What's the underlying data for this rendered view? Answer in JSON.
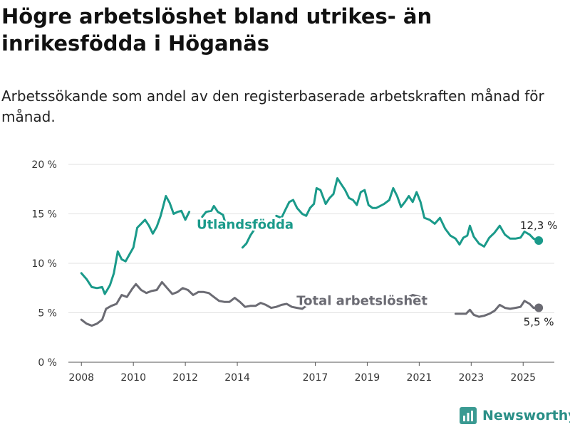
{
  "header": {
    "title": "Högre arbetslöshet bland utrikes- än inrikesfödda i Höganäs",
    "subtitle": "Arbetssökande som andel av den registerbaserade arbetskraften månad för månad."
  },
  "brand": {
    "name": "Newsworthy",
    "icon": "newsworthy-logo-icon",
    "color": "#3a9a92"
  },
  "chart_data": {
    "type": "line",
    "title": "",
    "xlabel": "",
    "ylabel": "",
    "ylim": [
      0,
      20
    ],
    "xlim": [
      2007.5,
      2026.2
    ],
    "yticks": [
      0,
      5,
      10,
      15,
      20
    ],
    "yticklabels": [
      "0 %",
      "5 %",
      "10 %",
      "15 %",
      "20 %"
    ],
    "xticks": [
      2008,
      2010,
      2012,
      2014,
      2017,
      2019,
      2021,
      2023,
      2025
    ],
    "xticklabels": [
      "2008",
      "2010",
      "2012",
      "2014",
      "2017",
      "2019",
      "2021",
      "2023",
      "2025"
    ],
    "grid": "horizontal",
    "legend": "inline labels",
    "series": [
      {
        "name": "Utlandsfödda",
        "color": "#1a9a8a",
        "end_label": "12,3 %",
        "points": [
          [
            2008.0,
            9.0
          ],
          [
            2008.2,
            8.4
          ],
          [
            2008.4,
            7.6
          ],
          [
            2008.6,
            7.5
          ],
          [
            2008.8,
            7.6
          ],
          [
            2008.9,
            6.9
          ],
          [
            2009.1,
            7.8
          ],
          [
            2009.25,
            9.0
          ],
          [
            2009.4,
            11.2
          ],
          [
            2009.55,
            10.4
          ],
          [
            2009.7,
            10.2
          ],
          [
            2009.85,
            10.9
          ],
          [
            2010.0,
            11.6
          ],
          [
            2010.15,
            13.6
          ],
          [
            2010.3,
            14.0
          ],
          [
            2010.45,
            14.4
          ],
          [
            2010.6,
            13.8
          ],
          [
            2010.75,
            13.0
          ],
          [
            2010.9,
            13.7
          ],
          [
            2011.05,
            14.8
          ],
          [
            2011.25,
            16.8
          ],
          [
            2011.4,
            16.1
          ],
          [
            2011.55,
            15.0
          ],
          [
            2011.7,
            15.2
          ],
          [
            2011.85,
            15.3
          ],
          [
            2012.0,
            14.4
          ],
          [
            2012.15,
            15.2
          ],
          [
            2012.3,
            null
          ],
          [
            2012.65,
            14.7
          ],
          [
            2012.8,
            15.2
          ],
          [
            2013.0,
            15.3
          ],
          [
            2013.1,
            15.8
          ],
          [
            2013.25,
            15.2
          ],
          [
            2013.45,
            14.9
          ],
          [
            2013.55,
            14.0
          ],
          [
            2013.75,
            null
          ],
          [
            2014.2,
            11.6
          ],
          [
            2014.35,
            12.0
          ],
          [
            2014.5,
            12.8
          ],
          [
            2014.7,
            13.6
          ],
          [
            2014.9,
            null
          ],
          [
            2015.5,
            14.8
          ],
          [
            2015.7,
            14.6
          ],
          [
            2015.85,
            15.4
          ],
          [
            2016.0,
            16.2
          ],
          [
            2016.15,
            16.4
          ],
          [
            2016.3,
            15.6
          ],
          [
            2016.5,
            15.0
          ],
          [
            2016.65,
            14.8
          ],
          [
            2016.8,
            15.6
          ],
          [
            2016.95,
            16.0
          ],
          [
            2017.05,
            17.6
          ],
          [
            2017.2,
            17.4
          ],
          [
            2017.4,
            16.0
          ],
          [
            2017.55,
            16.6
          ],
          [
            2017.7,
            17.0
          ],
          [
            2017.85,
            18.6
          ],
          [
            2018.0,
            18.0
          ],
          [
            2018.15,
            17.4
          ],
          [
            2018.3,
            16.6
          ],
          [
            2018.45,
            16.4
          ],
          [
            2018.6,
            15.9
          ],
          [
            2018.75,
            17.2
          ],
          [
            2018.9,
            17.4
          ],
          [
            2019.05,
            15.9
          ],
          [
            2019.2,
            15.6
          ],
          [
            2019.35,
            15.6
          ],
          [
            2019.5,
            15.8
          ],
          [
            2019.65,
            16.0
          ],
          [
            2019.85,
            16.4
          ],
          [
            2020.0,
            17.6
          ],
          [
            2020.15,
            16.8
          ],
          [
            2020.3,
            15.7
          ],
          [
            2020.45,
            16.2
          ],
          [
            2020.6,
            16.8
          ],
          [
            2020.75,
            16.2
          ],
          [
            2020.9,
            17.2
          ],
          [
            2021.05,
            16.2
          ],
          [
            2021.2,
            14.6
          ],
          [
            2021.4,
            14.4
          ],
          [
            2021.6,
            14.0
          ],
          [
            2021.8,
            14.6
          ],
          [
            2022.0,
            13.5
          ],
          [
            2022.2,
            12.8
          ],
          [
            2022.4,
            12.5
          ],
          [
            2022.55,
            11.9
          ],
          [
            2022.7,
            12.6
          ],
          [
            2022.85,
            12.8
          ],
          [
            2022.95,
            13.8
          ],
          [
            2023.1,
            12.7
          ],
          [
            2023.3,
            12.0
          ],
          [
            2023.5,
            11.7
          ],
          [
            2023.7,
            12.6
          ],
          [
            2023.9,
            13.1
          ],
          [
            2024.1,
            13.8
          ],
          [
            2024.3,
            12.9
          ],
          [
            2024.5,
            12.5
          ],
          [
            2024.7,
            12.5
          ],
          [
            2024.9,
            12.6
          ],
          [
            2025.05,
            13.2
          ],
          [
            2025.25,
            12.9
          ],
          [
            2025.4,
            12.5
          ],
          [
            2025.6,
            12.3
          ]
        ]
      },
      {
        "name": "Total arbetslöshet",
        "color": "#6b6b73",
        "end_label": "5,5 %",
        "points": [
          [
            2008.0,
            4.3
          ],
          [
            2008.2,
            3.9
          ],
          [
            2008.4,
            3.7
          ],
          [
            2008.6,
            3.9
          ],
          [
            2008.8,
            4.3
          ],
          [
            2008.95,
            5.4
          ],
          [
            2009.15,
            5.7
          ],
          [
            2009.35,
            5.9
          ],
          [
            2009.55,
            6.8
          ],
          [
            2009.75,
            6.6
          ],
          [
            2009.95,
            7.4
          ],
          [
            2010.1,
            7.9
          ],
          [
            2010.3,
            7.3
          ],
          [
            2010.5,
            7.0
          ],
          [
            2010.7,
            7.2
          ],
          [
            2010.9,
            7.3
          ],
          [
            2011.1,
            8.1
          ],
          [
            2011.3,
            7.5
          ],
          [
            2011.5,
            6.9
          ],
          [
            2011.7,
            7.1
          ],
          [
            2011.9,
            7.5
          ],
          [
            2012.1,
            7.3
          ],
          [
            2012.3,
            6.8
          ],
          [
            2012.5,
            7.1
          ],
          [
            2012.7,
            7.1
          ],
          [
            2012.9,
            7.0
          ],
          [
            2013.1,
            6.6
          ],
          [
            2013.3,
            6.2
          ],
          [
            2013.5,
            6.1
          ],
          [
            2013.7,
            6.1
          ],
          [
            2013.9,
            6.5
          ],
          [
            2014.1,
            6.1
          ],
          [
            2014.3,
            5.6
          ],
          [
            2014.5,
            5.7
          ],
          [
            2014.7,
            5.7
          ],
          [
            2014.9,
            6.0
          ],
          [
            2015.1,
            5.8
          ],
          [
            2015.3,
            5.5
          ],
          [
            2015.5,
            5.6
          ],
          [
            2015.7,
            5.8
          ],
          [
            2015.9,
            5.9
          ],
          [
            2016.1,
            5.6
          ],
          [
            2016.3,
            5.5
          ],
          [
            2016.5,
            5.4
          ],
          [
            2016.7,
            5.8
          ],
          [
            2016.9,
            null
          ],
          [
            2020.6,
            6.6
          ],
          [
            2020.75,
            6.8
          ],
          [
            2020.9,
            6.7
          ],
          [
            2021.05,
            6.6
          ],
          [
            2021.2,
            null
          ],
          [
            2022.4,
            4.9
          ],
          [
            2022.6,
            4.9
          ],
          [
            2022.8,
            4.9
          ],
          [
            2022.95,
            5.3
          ],
          [
            2023.1,
            4.8
          ],
          [
            2023.3,
            4.6
          ],
          [
            2023.5,
            4.7
          ],
          [
            2023.7,
            4.9
          ],
          [
            2023.9,
            5.2
          ],
          [
            2024.1,
            5.8
          ],
          [
            2024.3,
            5.5
          ],
          [
            2024.5,
            5.4
          ],
          [
            2024.7,
            5.5
          ],
          [
            2024.9,
            5.6
          ],
          [
            2025.05,
            6.2
          ],
          [
            2025.25,
            5.9
          ],
          [
            2025.4,
            5.5
          ],
          [
            2025.6,
            5.5
          ]
        ]
      }
    ],
    "labels": [
      {
        "text": "Utlandsfödda",
        "series": 0,
        "x": 2014.3,
        "y": 13.5
      },
      {
        "text": "Total arbetslöshet",
        "series": 1,
        "x": 2018.8,
        "y": 5.8
      }
    ]
  }
}
